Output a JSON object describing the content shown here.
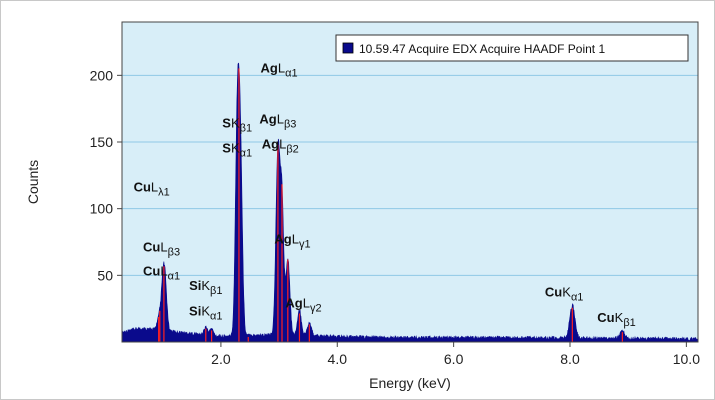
{
  "chart_data": {
    "type": "area",
    "title": "",
    "xlabel": "Energy (keV)",
    "ylabel": "Counts",
    "xlim": [
      0.3,
      10.2
    ],
    "ylim": [
      0,
      240
    ],
    "xticks": [
      2.0,
      4.0,
      6.0,
      8.0,
      10.0
    ],
    "xtick_labels": [
      "2.0",
      "4.0",
      "6.0",
      "8.0",
      "10.0"
    ],
    "yticks": [
      50,
      100,
      150,
      200
    ],
    "ytick_labels": [
      "50",
      "100",
      "150",
      "200"
    ],
    "grid": "horizontal",
    "legend": {
      "position": "top-right",
      "entries": [
        "10.59.47 Acquire EDX Acquire HAADF Point 1"
      ]
    },
    "colors": {
      "fill": "#0a0a8c",
      "marker": "#ff2020",
      "plot_bg": "#d8eef8",
      "grid": "#8fc8e6"
    },
    "series": [
      {
        "name": "10.59.47 Acquire EDX Acquire HAADF Point 1",
        "peaks": [
          {
            "x": 0.93,
            "height": 8,
            "width": 0.03
          },
          {
            "x": 1.01,
            "height": 40,
            "width": 0.035
          },
          {
            "x": 1.05,
            "height": 18,
            "width": 0.03
          },
          {
            "x": 1.74,
            "height": 6,
            "width": 0.03
          },
          {
            "x": 1.84,
            "height": 5,
            "width": 0.03
          },
          {
            "x": 2.31,
            "height": 140,
            "width": 0.035
          },
          {
            "x": 2.27,
            "height": 90,
            "width": 0.03
          },
          {
            "x": 2.35,
            "height": 60,
            "width": 0.03
          },
          {
            "x": 2.98,
            "height": 138,
            "width": 0.035
          },
          {
            "x": 3.05,
            "height": 95,
            "width": 0.03
          },
          {
            "x": 3.15,
            "height": 58,
            "width": 0.035
          },
          {
            "x": 3.35,
            "height": 18,
            "width": 0.035
          },
          {
            "x": 3.52,
            "height": 10,
            "width": 0.035
          },
          {
            "x": 8.04,
            "height": 24,
            "width": 0.045
          },
          {
            "x": 8.9,
            "height": 6,
            "width": 0.04
          }
        ],
        "background": [
          {
            "x": 0.3,
            "y": 6
          },
          {
            "x": 0.6,
            "y": 9
          },
          {
            "x": 0.9,
            "y": 8
          },
          {
            "x": 1.5,
            "y": 5
          },
          {
            "x": 2.0,
            "y": 3
          },
          {
            "x": 2.6,
            "y": 4
          },
          {
            "x": 3.8,
            "y": 3
          },
          {
            "x": 5.0,
            "y": 2
          },
          {
            "x": 7.0,
            "y": 2
          },
          {
            "x": 10.2,
            "y": 1
          }
        ]
      }
    ],
    "markers": [
      0.93,
      0.95,
      1.02,
      1.74,
      1.84,
      2.31,
      2.47,
      2.98,
      3.05,
      3.15,
      3.35,
      3.52,
      8.04,
      8.9
    ]
  },
  "annotations": [
    {
      "id": "cu-l-lambda1",
      "elem": "Cu",
      "line": "L",
      "sub": "λ1",
      "energy": 0.81,
      "height": 113
    },
    {
      "id": "cu-l-beta3",
      "elem": "Cu",
      "line": "L",
      "sub": "β3",
      "energy": 0.98,
      "height": 68
    },
    {
      "id": "cu-l-alpha1",
      "elem": "Cu",
      "line": "L",
      "sub": "α1",
      "energy": 0.98,
      "height": 50
    },
    {
      "id": "si-k-beta1",
      "elem": "Si",
      "line": "K",
      "sub": "β1",
      "energy": 1.74,
      "height": 39
    },
    {
      "id": "si-k-alpha1",
      "elem": "Si",
      "line": "K",
      "sub": "α1",
      "energy": 1.74,
      "height": 20
    },
    {
      "id": "s-k-beta1",
      "elem": "S",
      "line": "K",
      "sub": "β1",
      "energy": 2.28,
      "height": 161
    },
    {
      "id": "s-k-alpha1",
      "elem": "S",
      "line": "K",
      "sub": "α1",
      "energy": 2.28,
      "height": 142
    },
    {
      "id": "ag-l-alpha1",
      "elem": "Ag",
      "line": "L",
      "sub": "α1",
      "energy": 3.0,
      "height": 202
    },
    {
      "id": "ag-l-beta3",
      "elem": "Ag",
      "line": "L",
      "sub": "β3",
      "energy": 2.98,
      "height": 164
    },
    {
      "id": "ag-l-beta2",
      "elem": "Ag",
      "line": "L",
      "sub": "β2",
      "energy": 3.02,
      "height": 145
    },
    {
      "id": "ag-l-gamma1",
      "elem": "Ag",
      "line": "L",
      "sub": "γ1",
      "energy": 3.23,
      "height": 74
    },
    {
      "id": "ag-l-gamma2",
      "elem": "Ag",
      "line": "L",
      "sub": "γ2",
      "energy": 3.42,
      "height": 26
    },
    {
      "id": "cu-k-alpha1",
      "elem": "Cu",
      "line": "K",
      "sub": "α1",
      "energy": 7.9,
      "height": 34
    },
    {
      "id": "cu-k-beta1",
      "elem": "Cu",
      "line": "K",
      "sub": "β1",
      "energy": 8.8,
      "height": 15
    }
  ]
}
